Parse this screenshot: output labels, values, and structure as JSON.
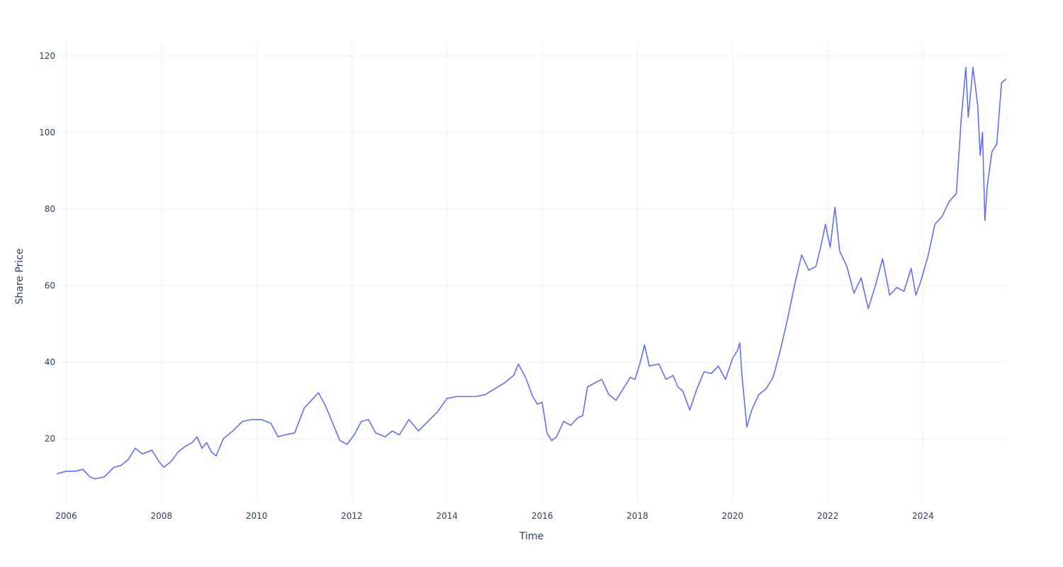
{
  "chart_data": {
    "type": "line",
    "title": "",
    "xlabel": "Time",
    "ylabel": "Share Price",
    "xlim": [
      2005.8,
      2025.75
    ],
    "ylim": [
      3.5,
      123.5
    ],
    "x_ticks": [
      2006,
      2008,
      2010,
      2012,
      2014,
      2016,
      2018,
      2020,
      2022,
      2024
    ],
    "x_tick_labels": [
      "2006",
      "2008",
      "2010",
      "2012",
      "2014",
      "2016",
      "2018",
      "2020",
      "2022",
      "2024"
    ],
    "y_ticks": [
      20,
      40,
      60,
      80,
      100,
      120
    ],
    "y_tick_labels": [
      "20",
      "40",
      "60",
      "80",
      "100",
      "120"
    ],
    "grid": true,
    "legend": "none",
    "colors": {
      "line": "#636efa",
      "grid": "#ebeef4",
      "text": "#2a3f5f"
    },
    "series": [
      {
        "x": [
          2005.8,
          2006.0,
          2006.2,
          2006.35,
          2006.5,
          2006.6,
          2006.8,
          2007.0,
          2007.15,
          2007.3,
          2007.45,
          2007.6,
          2007.8,
          2007.95,
          2008.05,
          2008.2,
          2008.35,
          2008.5,
          2008.65,
          2008.75,
          2008.85,
          2008.95,
          2009.05,
          2009.15,
          2009.3,
          2009.5,
          2009.7,
          2009.9,
          2010.1,
          2010.3,
          2010.45,
          2010.6,
          2010.8,
          2011.0,
          2011.15,
          2011.3,
          2011.45,
          2011.6,
          2011.75,
          2011.9,
          2012.05,
          2012.2,
          2012.35,
          2012.5,
          2012.7,
          2012.85,
          2013.0,
          2013.2,
          2013.4,
          2013.6,
          2013.8,
          2014.0,
          2014.2,
          2014.4,
          2014.6,
          2014.8,
          2015.0,
          2015.2,
          2015.4,
          2015.5,
          2015.65,
          2015.8,
          2015.9,
          2016.0,
          2016.1,
          2016.2,
          2016.3,
          2016.45,
          2016.6,
          2016.75,
          2016.85,
          2016.95,
          2017.1,
          2017.25,
          2017.4,
          2017.55,
          2017.7,
          2017.85,
          2017.95,
          2018.05,
          2018.15,
          2018.25,
          2018.45,
          2018.6,
          2018.75,
          2018.85,
          2018.95,
          2019.1,
          2019.25,
          2019.4,
          2019.55,
          2019.7,
          2019.85,
          2020.0,
          2020.1,
          2020.15,
          2020.2,
          2020.3,
          2020.4,
          2020.55,
          2020.7,
          2020.85,
          2021.0,
          2021.15,
          2021.3,
          2021.45,
          2021.6,
          2021.75,
          2021.85,
          2021.95,
          2022.05,
          2022.15,
          2022.25,
          2022.4,
          2022.55,
          2022.7,
          2022.85,
          2023.0,
          2023.15,
          2023.3,
          2023.45,
          2023.6,
          2023.75,
          2023.85,
          2023.95,
          2024.1,
          2024.25,
          2024.4,
          2024.55,
          2024.7,
          2024.8,
          2024.9,
          2024.95,
          2025.05,
          2025.15,
          2025.2,
          2025.25,
          2025.3,
          2025.35,
          2025.45,
          2025.55,
          2025.65,
          2025.75
        ],
        "y": [
          10.8,
          11.5,
          11.5,
          12.0,
          10.0,
          9.5,
          10.0,
          12.5,
          13.0,
          14.5,
          17.5,
          16.0,
          17.0,
          14.0,
          12.5,
          14.0,
          16.5,
          18.0,
          19.0,
          20.5,
          17.5,
          19.0,
          16.5,
          15.5,
          20.0,
          22.0,
          24.5,
          25.0,
          25.0,
          24.0,
          20.5,
          21.0,
          21.5,
          28.0,
          30.0,
          32.0,
          28.5,
          24.0,
          19.5,
          18.5,
          21.0,
          24.5,
          25.0,
          21.5,
          20.5,
          22.0,
          21.0,
          25.0,
          22.0,
          24.5,
          27.0,
          30.5,
          31.0,
          31.0,
          31.0,
          31.5,
          33.0,
          34.5,
          36.5,
          39.5,
          36.0,
          31.0,
          29.0,
          29.5,
          21.5,
          19.5,
          20.5,
          24.5,
          23.5,
          25.5,
          26.0,
          33.5,
          34.5,
          35.5,
          31.5,
          30.0,
          33.0,
          36.0,
          35.5,
          39.5,
          44.5,
          39.0,
          39.5,
          35.5,
          36.5,
          33.5,
          32.5,
          27.5,
          33.0,
          37.5,
          37.0,
          39.0,
          35.5,
          41.0,
          43.0,
          45.0,
          36.0,
          23.0,
          27.5,
          31.5,
          33.0,
          36.0,
          43.0,
          51.0,
          60.0,
          68.0,
          64.0,
          65.0,
          70.0,
          76.0,
          70.0,
          80.5,
          69.0,
          65.0,
          58.0,
          62.0,
          54.0,
          60.0,
          67.0,
          57.5,
          59.5,
          58.5,
          64.5,
          57.5,
          61.0,
          67.5,
          76.0,
          78.0,
          82.0,
          84.0,
          103.0,
          117.0,
          104.0,
          117.0,
          107.0,
          94.0,
          100.0,
          77.0,
          86.0,
          95.0,
          97.0,
          113.0,
          114.0
        ]
      }
    ]
  }
}
